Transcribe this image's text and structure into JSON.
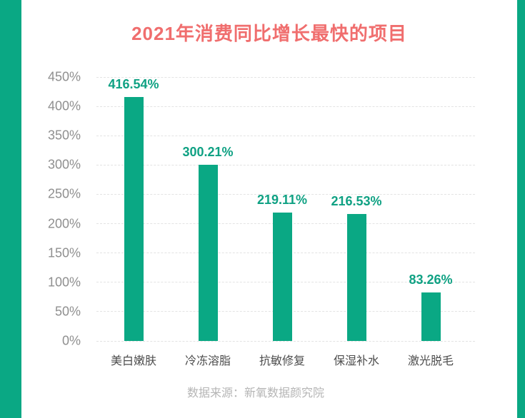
{
  "page": {
    "title": "2021年消费同比增长最快的项目",
    "source_note": "数据来源：新氧数据颜究院"
  },
  "colors": {
    "frame_stripe": "#0aa884",
    "bar": "#0aa884",
    "title": "#f06e6e",
    "value_label": "#0fa183",
    "axis_label": "#8f8f8f",
    "category_label": "#4d4d4d",
    "source_text": "#b5b5b5",
    "gridline": "#e3e3e3",
    "background": "#ffffff"
  },
  "chart_data": {
    "type": "bar",
    "title": "2021年消费同比增长最快的项目",
    "categories": [
      "美白嫩肤",
      "冷冻溶脂",
      "抗敏修复",
      "保湿补水",
      "激光脱毛"
    ],
    "values": [
      416.54,
      300.21,
      219.11,
      216.53,
      83.26
    ],
    "value_labels": [
      "416.54%",
      "300.21%",
      "219.11%",
      "216.53%",
      "83.26%"
    ],
    "yticks_top_to_bottom": [
      "450%",
      "400%",
      "350%",
      "300%",
      "250%",
      "200%",
      "150%",
      "100%",
      "50%",
      "0%"
    ],
    "ylim": [
      0,
      450
    ],
    "xlabel": "",
    "ylabel": "",
    "grid": "horizontal-dashed",
    "legend_position": "none",
    "footnote": "数据来源：新氧数据颜究院"
  }
}
